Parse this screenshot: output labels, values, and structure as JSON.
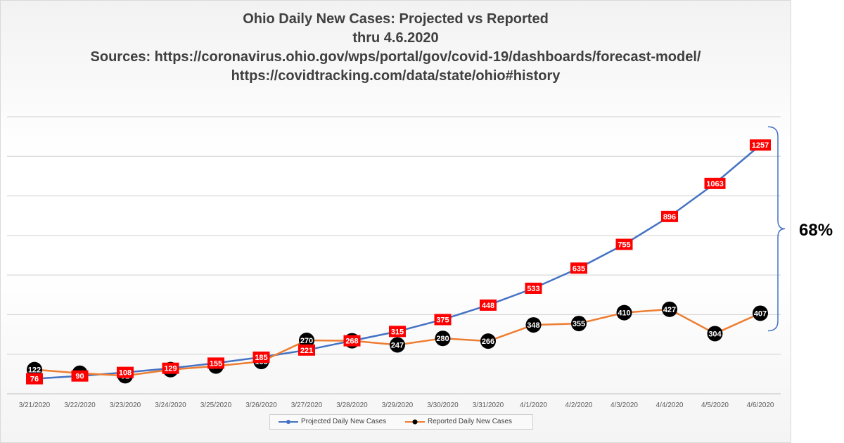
{
  "chart_data": {
    "type": "line",
    "title_lines": [
      "Ohio Daily New Cases: Projected vs Reported",
      "thru 4.6.2020",
      "Sources:  https://coronavirus.ohio.gov/wps/portal/gov/covid-19/dashboards/forecast-model/",
      "https://covidtracking.com/data/state/ohio#history"
    ],
    "categories": [
      "3/21/2020",
      "3/22/2020",
      "3/23/2020",
      "3/24/2020",
      "3/25/2020",
      "3/26/2020",
      "3/27/2020",
      "3/28/2020",
      "3/29/2020",
      "3/30/2020",
      "3/31/2020",
      "4/1/2020",
      "4/2/2020",
      "4/3/2020",
      "4/4/2020",
      "4/5/2020",
      "4/6/2020"
    ],
    "series": [
      {
        "name": "Projected Daily New Cases",
        "values": [
          76,
          90,
          108,
          129,
          155,
          185,
          221,
          268,
          315,
          375,
          448,
          533,
          635,
          755,
          896,
          1063,
          1257
        ],
        "color": "#4472c4",
        "label_bg": "#ff0000",
        "label_color": "#ffffff"
      },
      {
        "name": "Reported Daily New Cases",
        "values": [
          122,
          104,
          91,
          122,
          140,
          163,
          270,
          268,
          247,
          280,
          266,
          348,
          355,
          410,
          427,
          304,
          407
        ],
        "color": "#ed7d31",
        "label_bg": "#000000",
        "label_color": "#ffffff"
      }
    ],
    "ylim": [
      0,
      1400
    ],
    "grid": true,
    "legend": "bottom",
    "annotation": "68%"
  }
}
